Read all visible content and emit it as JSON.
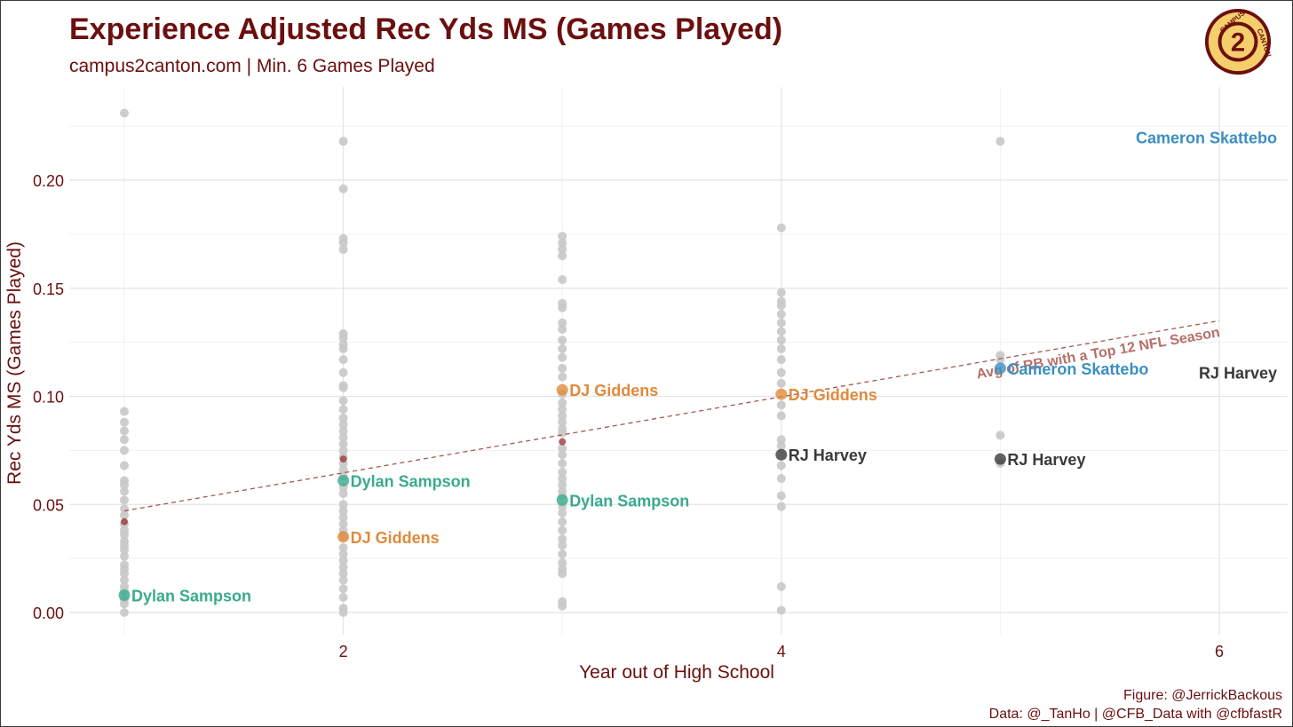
{
  "header": {
    "title": "Experience Adjusted Rec Yds MS (Games Played)",
    "subtitle": "campus2canton.com | Min. 6 Games Played"
  },
  "logo": {
    "icon": "campus2canton-logo",
    "text": "CAMPUS 2 CANTON",
    "colors": {
      "ring": "#6b0f0f",
      "fill": "#f5cf6b"
    }
  },
  "caption": {
    "line1": "Figure: @JerrickBackous",
    "line2": "Data: @_TanHo | @CFB_Data with @cfbfastR"
  },
  "chart_data": {
    "type": "scatter",
    "title": "Experience Adjusted Rec Yds MS (Games Played)",
    "xlabel": "Year out of High School",
    "ylabel": "Rec Yds MS (Games Played)",
    "xlim": [
      0.6,
      6.3
    ],
    "ylim": [
      -0.012,
      0.235
    ],
    "x_ticks": [
      2,
      4,
      6
    ],
    "y_ticks": [
      0.0,
      0.05,
      0.1,
      0.15,
      0.2
    ],
    "y_tick_labels": [
      "0.00",
      "0.05",
      "0.10",
      "0.15",
      "0.20"
    ],
    "grid": true,
    "colors": {
      "background_points": "#c8c8c8",
      "avg_points": "#9c3b3b",
      "trend_line": "#a8564f",
      "Dylan Sampson": "#3aaa8d",
      "DJ Giddens": "#e08a3c",
      "RJ Harvey": "#3a3a3a",
      "Cameron Skattebo": "#3a8fc0",
      "axis_text": "#6b0f0f"
    },
    "background_points": [
      {
        "x": 1,
        "y": [
          0.231,
          0.093,
          0.088,
          0.084,
          0.08,
          0.075,
          0.068,
          0.061,
          0.059,
          0.056,
          0.052,
          0.048,
          0.045,
          0.041,
          0.038,
          0.036,
          0.033,
          0.031,
          0.029,
          0.026,
          0.022,
          0.02,
          0.018,
          0.015,
          0.012,
          0.01,
          0.006,
          0.004,
          0.0
        ]
      },
      {
        "x": 2,
        "y": [
          0.218,
          0.196,
          0.173,
          0.171,
          0.168,
          0.129,
          0.127,
          0.124,
          0.122,
          0.117,
          0.111,
          0.105,
          0.104,
          0.098,
          0.094,
          0.09,
          0.087,
          0.084,
          0.081,
          0.078,
          0.075,
          0.072,
          0.069,
          0.066,
          0.063,
          0.058,
          0.055,
          0.05,
          0.047,
          0.044,
          0.041,
          0.038,
          0.035,
          0.03,
          0.027,
          0.024,
          0.021,
          0.018,
          0.015,
          0.011,
          0.007,
          0.002,
          0.0
        ]
      },
      {
        "x": 3,
        "y": [
          0.174,
          0.171,
          0.168,
          0.165,
          0.154,
          0.143,
          0.141,
          0.134,
          0.131,
          0.126,
          0.122,
          0.118,
          0.113,
          0.109,
          0.101,
          0.097,
          0.094,
          0.091,
          0.088,
          0.085,
          0.083,
          0.076,
          0.073,
          0.069,
          0.065,
          0.062,
          0.059,
          0.056,
          0.054,
          0.049,
          0.046,
          0.042,
          0.038,
          0.034,
          0.031,
          0.027,
          0.023,
          0.02,
          0.018,
          0.005,
          0.003
        ]
      },
      {
        "x": 4,
        "y": [
          0.178,
          0.148,
          0.144,
          0.142,
          0.138,
          0.134,
          0.13,
          0.126,
          0.122,
          0.117,
          0.111,
          0.106,
          0.096,
          0.091,
          0.08,
          0.077,
          0.068,
          0.062,
          0.054,
          0.049,
          0.012,
          0.001
        ]
      },
      {
        "x": 5,
        "y": [
          0.218,
          0.119,
          0.117,
          0.082,
          0.069
        ]
      }
    ],
    "average_points": [
      {
        "x": 1,
        "y": 0.042
      },
      {
        "x": 2,
        "y": 0.071
      },
      {
        "x": 3,
        "y": 0.079
      }
    ],
    "trend_line": {
      "label": "Avg of RB with a Top 12 NFL Season",
      "x": [
        1,
        6
      ],
      "y": [
        0.047,
        0.135
      ]
    },
    "highlighted_points": [
      {
        "player": "Dylan Sampson",
        "x": 1,
        "y": 0.008
      },
      {
        "player": "Dylan Sampson",
        "x": 2,
        "y": 0.061
      },
      {
        "player": "Dylan Sampson",
        "x": 3,
        "y": 0.052
      },
      {
        "player": "DJ Giddens",
        "x": 2,
        "y": 0.035
      },
      {
        "player": "DJ Giddens",
        "x": 3,
        "y": 0.103
      },
      {
        "player": "DJ Giddens",
        "x": 4,
        "y": 0.101
      },
      {
        "player": "RJ Harvey",
        "x": 4,
        "y": 0.073
      },
      {
        "player": "RJ Harvey",
        "x": 5,
        "y": 0.071
      },
      {
        "player": "RJ Harvey",
        "x": 6,
        "y": 0.111
      },
      {
        "player": "Cameron Skattebo",
        "x": 5,
        "y": 0.113
      },
      {
        "player": "Cameron Skattebo",
        "x": 6,
        "y": 0.22
      }
    ]
  }
}
